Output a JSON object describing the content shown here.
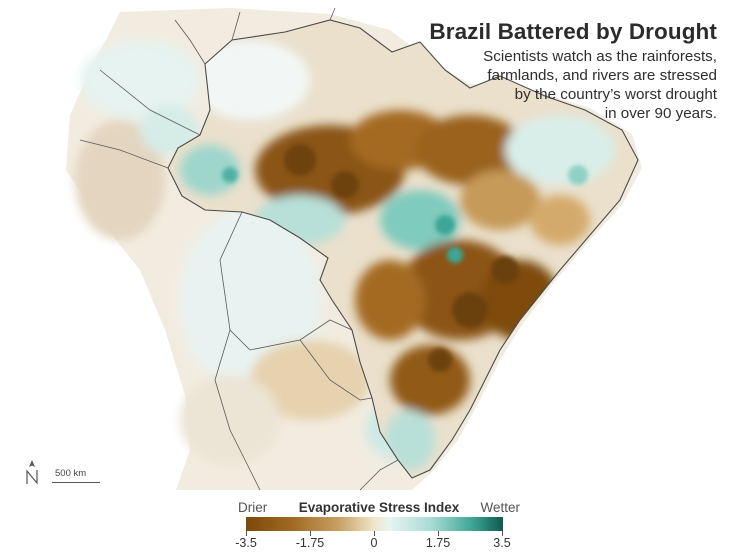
{
  "header": {
    "title": "Brazil Battered by Drought",
    "subtitle_lines": [
      "Scientists watch as the rainforests,",
      "farmlands, and rivers are stressed",
      "by the country’s worst drought",
      "in over 90 years."
    ]
  },
  "scalebar": {
    "label": "500 km",
    "north_icon": "north-arrow-icon"
  },
  "legend": {
    "left_label": "Drier",
    "title": "Evaporative Stress Index",
    "right_label": "Wetter",
    "ticks": [
      "-3.5",
      "-1.75",
      "0",
      "1.75",
      "3.5"
    ],
    "range": [
      -3.5,
      3.5
    ],
    "colors": {
      "drier": "#7a4a0a",
      "neutral": "#f1e6cc",
      "wetter": "#0d5a4e"
    }
  },
  "map": {
    "region": "South America",
    "highlighted_country": "Brazil",
    "colors": {
      "land": "#f3ede2",
      "dry": "#8a5414",
      "wet": "#5fbfb0",
      "border": "#4a4a4a"
    }
  }
}
